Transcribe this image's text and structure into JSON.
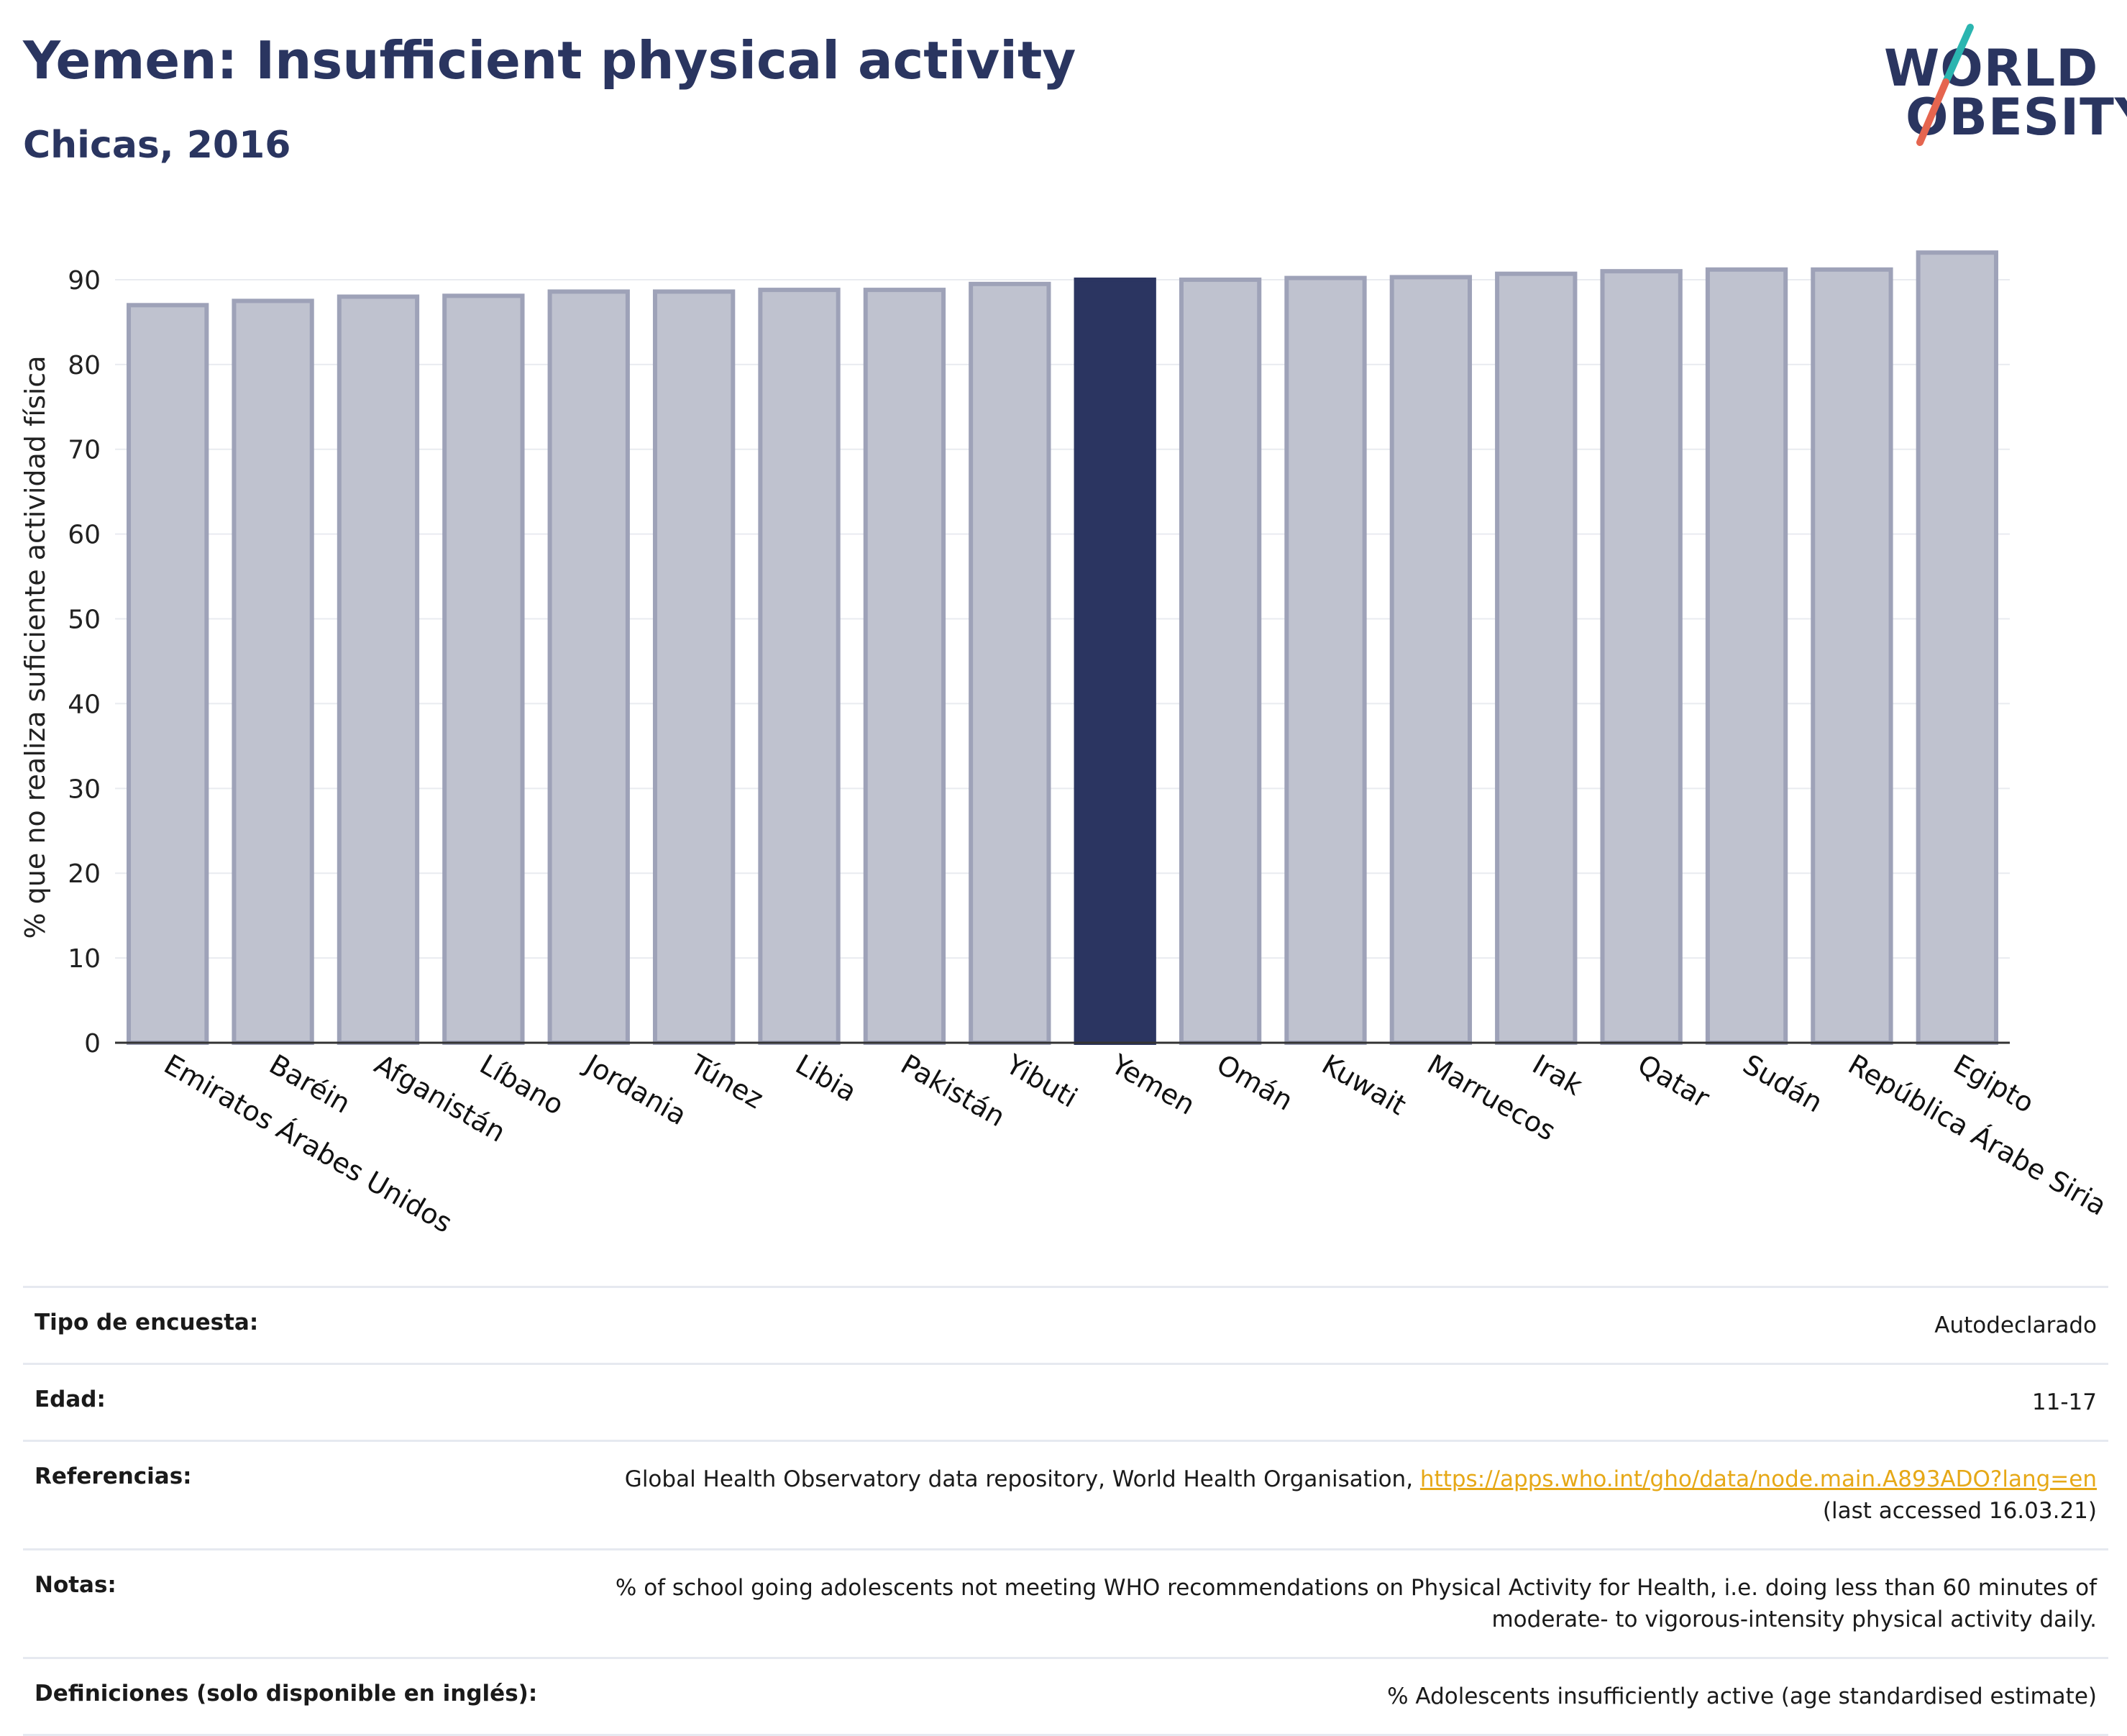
{
  "header": {
    "title": "Yemen: Insufficient physical activity",
    "subtitle": "Chicas, 2016"
  },
  "logo": {
    "line1": "WORLD",
    "line2": "OBESITY"
  },
  "colors": {
    "highlight": "#2b3561",
    "bar_fill": "#bfc2cf",
    "bar_stroke": "#9ea2b8",
    "title": "#2a3560",
    "link": "#e6a817"
  },
  "chart_data": {
    "type": "bar",
    "ylabel": "% que no realiza suficiente actividad física",
    "ylim": [
      0,
      95
    ],
    "yticks": [
      0,
      10,
      20,
      30,
      40,
      50,
      60,
      70,
      80,
      90
    ],
    "grid": true,
    "highlight": "Yemen",
    "categories": [
      "Emiratos Árabes Unidos",
      "Baréin",
      "Afganistán",
      "Líbano",
      "Jordania",
      "Túnez",
      "Libia",
      "Pakistán",
      "Yibuti",
      "Yemen",
      "Omán",
      "Kuwait",
      "Marruecos",
      "Irak",
      "Qatar",
      "Sudán",
      "República Árabe Siria",
      "Egipto"
    ],
    "values": [
      87.0,
      87.5,
      88.0,
      88.1,
      88.6,
      88.6,
      88.8,
      88.8,
      89.5,
      90.0,
      90.0,
      90.2,
      90.3,
      90.7,
      91.0,
      91.2,
      91.2,
      93.2
    ]
  },
  "info": {
    "rows": [
      {
        "label": "Tipo de encuesta:",
        "value": "Autodeclarado"
      },
      {
        "label": "Edad:",
        "value": "11-17"
      },
      {
        "label": "Referencias:",
        "value": "Global Health Observatory data repository, World Health Organisation,",
        "link": "https://apps.who.int/gho/data/node.main.A893ADO?lang=en",
        "value2": "(last accessed 16.03.21)"
      },
      {
        "label": "Notas:",
        "value": "% of school going adolescents not meeting WHO recommendations on Physical Activity for Health, i.e. doing less than 60 minutes of moderate- to vigorous-intensity physical activity daily."
      },
      {
        "label": "Definiciones (solo disponible en inglés):",
        "value": "% Adolescents insufficiently active (age standardised estimate)"
      }
    ]
  }
}
